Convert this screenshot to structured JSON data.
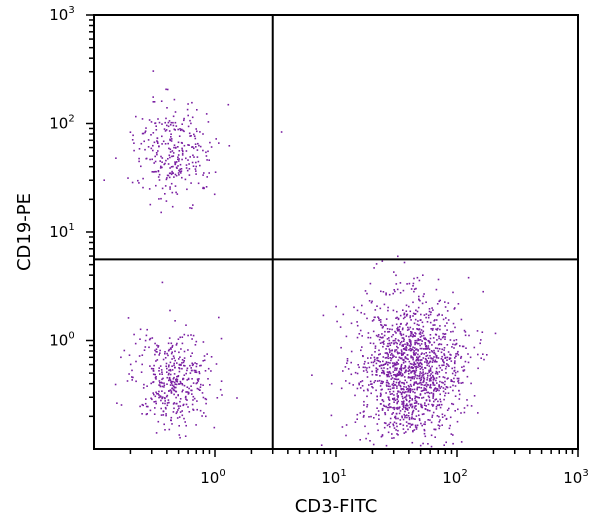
{
  "chart_data": {
    "type": "scatter",
    "title": "",
    "xlabel": "CD3-FITC",
    "ylabel": "CD19-PE",
    "xscale": "log",
    "yscale": "log",
    "xlim": [
      0.1,
      1000
    ],
    "ylim": [
      0.1,
      1000
    ],
    "x_ticks": [
      {
        "base": "10",
        "exp": "0",
        "value": 1
      },
      {
        "base": "10",
        "exp": "1",
        "value": 10
      },
      {
        "base": "10",
        "exp": "2",
        "value": 100
      },
      {
        "base": "10",
        "exp": "3",
        "value": 1000
      }
    ],
    "y_ticks": [
      {
        "base": "10",
        "exp": "0",
        "value": 1
      },
      {
        "base": "10",
        "exp": "1",
        "value": 10
      },
      {
        "base": "10",
        "exp": "2",
        "value": 100
      },
      {
        "base": "10",
        "exp": "3",
        "value": 1000
      }
    ],
    "quadrant_gates": {
      "x": 3.0,
      "y": 5.6
    },
    "point_color": "#7a1fa2",
    "grid": false,
    "legend": "none",
    "populations": [
      {
        "quadrant": "upper-left (CD19+ CD3-)",
        "center_x": 0.45,
        "center_y": 55,
        "approx_events": 300
      },
      {
        "quadrant": "lower-left (CD19- CD3-)",
        "center_x": 0.45,
        "center_y": 0.45,
        "approx_events": 420
      },
      {
        "quadrant": "lower-right (CD19- CD3+)",
        "center_x": 40,
        "center_y": 0.55,
        "approx_events": 1500
      },
      {
        "quadrant": "upper-right (CD19+ CD3+)",
        "center_x": 3.5,
        "center_y": 85,
        "approx_events": 1
      }
    ]
  }
}
